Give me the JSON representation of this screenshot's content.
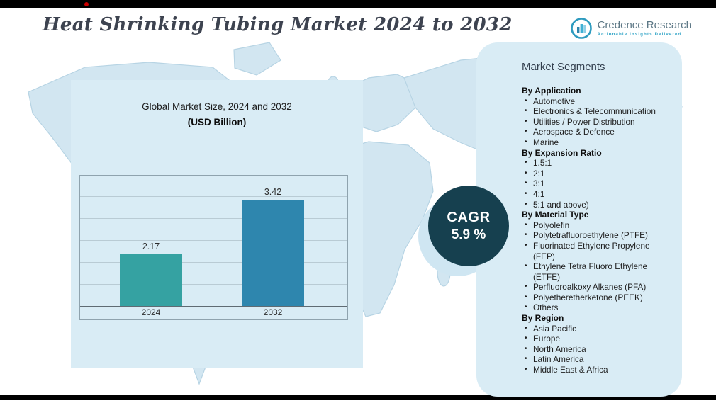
{
  "header": {
    "title": "Heat Shrinking Tubing Market 2024 to 2032"
  },
  "logo": {
    "name": "Credence Research",
    "tagline": "Actionable Insights Delivered"
  },
  "chart": {
    "title_line1": "Global Market Size, 2024 and 2032",
    "title_line2": "(USD Billion)"
  },
  "chart_data": {
    "type": "bar",
    "categories": [
      "2024",
      "2032"
    ],
    "values": [
      2.17,
      3.42
    ],
    "title": "Global Market Size, 2024 and 2032",
    "xlabel": "",
    "ylabel": "USD Billion",
    "ylim": [
      1,
      4
    ],
    "grid": true,
    "legend": "none",
    "bar_colors": [
      "#35a2a2",
      "#2e86ae"
    ]
  },
  "cagr": {
    "label": "CAGR",
    "value": "5.9 %"
  },
  "segments": {
    "title": "Market Segments",
    "groups": [
      {
        "heading": "By Application",
        "items": [
          "Automotive",
          "Electronics & Telecommunication",
          "Utilities / Power Distribution",
          "Aerospace & Defence",
          "Marine"
        ]
      },
      {
        "heading": "By Expansion Ratio",
        "items": [
          "1.5:1",
          "2:1",
          "3:1",
          "4:1",
          "5:1 and above)"
        ]
      },
      {
        "heading": "By Material Type",
        "items": [
          "Polyolefin",
          "Polytetrafluoroethylene (PTFE)",
          "Fluorinated Ethylene Propylene (FEP)",
          "Ethylene Tetra Fluoro Ethylene (ETFE)",
          "Perfluoroalkoxy Alkanes (PFA)",
          "Polyetheretherketone (PEEK)",
          "Others"
        ]
      },
      {
        "heading": "By Region",
        "items": [
          "Asia Pacific",
          "Europe",
          "North America",
          "Latin America",
          "Middle East & Africa"
        ]
      }
    ]
  },
  "colors": {
    "panel_bg": "#d9ecf5",
    "cagr_circle": "#16404f",
    "accent_teal": "#35a2a2",
    "accent_blue": "#2e86ae"
  }
}
